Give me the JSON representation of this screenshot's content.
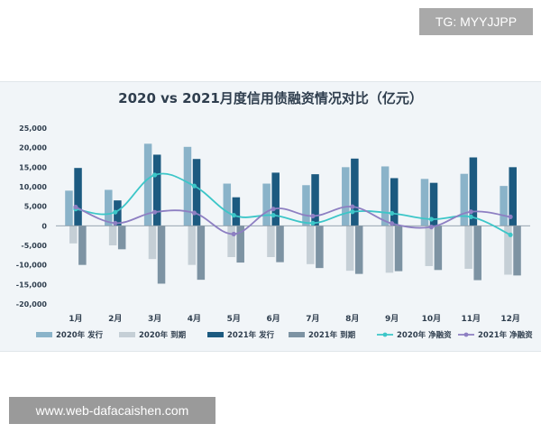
{
  "watermark_top": "TG: MYYJJPP",
  "watermark_bottom": "www.web-dafacaishen.com",
  "chart_data": {
    "type": "bar",
    "title": "2020 vs 2021月度信用债融资情况对比（亿元）",
    "categories": [
      "1月",
      "2月",
      "3月",
      "4月",
      "5月",
      "6月",
      "7月",
      "8月",
      "9月",
      "10月",
      "11月",
      "12月"
    ],
    "ylim": [
      -20000,
      25000
    ],
    "yticks": [
      25000,
      20000,
      15000,
      10000,
      5000,
      0,
      -5000,
      -10000,
      -15000,
      -20000
    ],
    "ytick_labels": [
      "25,000",
      "20,000",
      "15,000",
      "10,000",
      "5,000",
      "0",
      "-5,000",
      "-10,000",
      "-15,000",
      "-20,000"
    ],
    "legend_position": "bottom",
    "grid": false,
    "series": [
      {
        "name": "2020年 发行",
        "kind": "bar",
        "color": "#8ab3c9",
        "values": [
          9000,
          9200,
          21000,
          20200,
          10800,
          10800,
          10400,
          15000,
          15200,
          12000,
          13300,
          10200
        ]
      },
      {
        "name": "2020年 到期",
        "kind": "bar",
        "color": "#c5cfd6",
        "values": [
          -4500,
          -5000,
          -8500,
          -10000,
          -8000,
          -8000,
          -9800,
          -11500,
          -12000,
          -10300,
          -11000,
          -12500
        ]
      },
      {
        "name": "2021年 发行",
        "kind": "bar",
        "color": "#1c5a80",
        "values": [
          14800,
          6500,
          18200,
          17100,
          7300,
          13600,
          13200,
          17200,
          12200,
          11000,
          17500,
          15000
        ]
      },
      {
        "name": "2021年 到期",
        "kind": "bar",
        "color": "#7d93a3",
        "values": [
          -10000,
          -6000,
          -14800,
          -13800,
          -9400,
          -9300,
          -10800,
          -12300,
          -11600,
          -11300,
          -13900,
          -12700
        ]
      },
      {
        "name": "2020年 净融资",
        "kind": "line",
        "color": "#3cc6c8",
        "values": [
          4300,
          3500,
          13000,
          10200,
          2700,
          2700,
          700,
          3600,
          3200,
          1700,
          2300,
          -2300
        ]
      },
      {
        "name": "2021年 净融资",
        "kind": "line",
        "color": "#8d7fc2",
        "values": [
          4800,
          700,
          3500,
          3300,
          -2100,
          4300,
          2500,
          4900,
          600,
          -300,
          3600,
          2300
        ]
      }
    ]
  }
}
